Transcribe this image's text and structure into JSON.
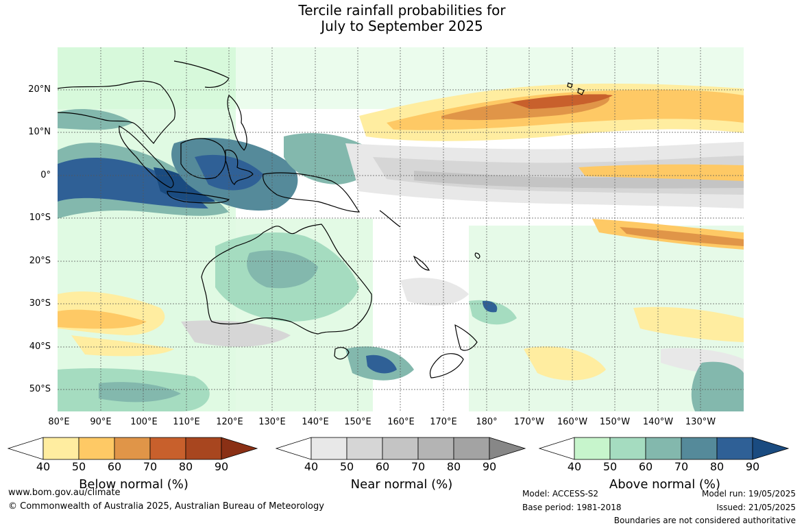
{
  "title": {
    "line1": "Tercile rainfall probabilities for",
    "line2": "July to September 2025"
  },
  "map": {
    "lat_labels": [
      "20°N",
      "10°N",
      "0°",
      "10°S",
      "20°S",
      "30°S",
      "40°S",
      "50°S"
    ],
    "lon_labels": [
      "80°E",
      "90°E",
      "100°E",
      "110°E",
      "120°E",
      "130°E",
      "140°E",
      "150°E",
      "160°E",
      "170°E",
      "180°",
      "170°W",
      "160°W",
      "150°W",
      "140°W",
      "130°W"
    ],
    "projection": "equirectangular",
    "lon_range": [
      80,
      240
    ],
    "lat_range": [
      -55,
      30
    ]
  },
  "legends": [
    {
      "title": "Below normal (%)",
      "ticks": [
        "40",
        "50",
        "60",
        "70",
        "80",
        "90"
      ],
      "colors": [
        "#ffffff",
        "#ffeda0",
        "#fec965",
        "#e09548",
        "#c8602c",
        "#a8461f",
        "#8a3015"
      ]
    },
    {
      "title": "Near normal (%)",
      "ticks": [
        "40",
        "50",
        "60",
        "70",
        "80",
        "90"
      ],
      "colors": [
        "#ffffff",
        "#e8e8e8",
        "#d6d6d6",
        "#c4c4c4",
        "#b4b4b4",
        "#a3a3a3",
        "#878787"
      ]
    },
    {
      "title": "Above normal (%)",
      "ticks": [
        "40",
        "50",
        "60",
        "70",
        "80",
        "90"
      ],
      "colors": [
        "#ffffff",
        "#c7f5cc",
        "#a5dcc0",
        "#83b8ad",
        "#558a9a",
        "#2f6096",
        "#1a4b80"
      ]
    }
  ],
  "footer": {
    "website": "www.bom.gov.au/climate",
    "copyright": "© Commonwealth of Australia 2025, Australian Bureau of Meteorology",
    "model": "Model: ACCESS-S2",
    "base_period": "Base period: 1981-2018",
    "model_run": "Model run: 19/05/2025",
    "issued": "Issued: 21/05/2025",
    "disclaimer": "Boundaries are not considered authoritative"
  }
}
